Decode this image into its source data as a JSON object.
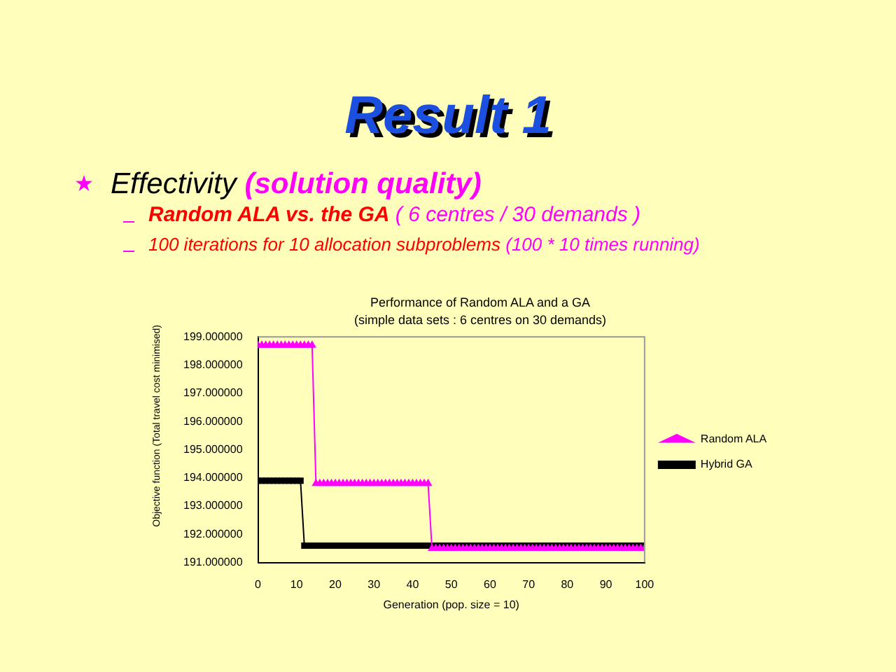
{
  "chart_data": {
    "type": "line",
    "title": "Performance of Random ALA and a GA",
    "subtitle": "(simple data sets : 6 centres on 30 demands)",
    "xlabel": "Generation (pop. size = 10)",
    "ylabel": "Objective function (Total travel cost minimised)",
    "annotations": [
      "Result 1",
      "Effectivity",
      "(solution quality)",
      "Random ALA vs. the GA",
      "( 6 centres / 30 demands )",
      "100 iterations for 10 allocation subproblems",
      "(100 * 10 times running)"
    ],
    "x": [
      0,
      1,
      2,
      3,
      4,
      5,
      6,
      7,
      8,
      9,
      10,
      11,
      12,
      13,
      14,
      15,
      16,
      17,
      18,
      19,
      20,
      21,
      22,
      23,
      24,
      25,
      26,
      27,
      28,
      29,
      30,
      31,
      32,
      33,
      34,
      35,
      36,
      37,
      38,
      39,
      40,
      41,
      42,
      43,
      44,
      45,
      46,
      47,
      48,
      49,
      50,
      51,
      52,
      53,
      54,
      55,
      56,
      57,
      58,
      59,
      60,
      61,
      62,
      63,
      64,
      65,
      66,
      67,
      68,
      69,
      70,
      71,
      72,
      73,
      74,
      75,
      76,
      77,
      78,
      79,
      80,
      81,
      82,
      83,
      84,
      85,
      86,
      87,
      88,
      89,
      90,
      91,
      92,
      93,
      94,
      95,
      96,
      97,
      98,
      99,
      100
    ],
    "series": [
      {
        "name": "Random ALA",
        "color": "#ff00ff",
        "marker": "triangle",
        "values": [
          198.7,
          198.7,
          198.7,
          198.7,
          198.7,
          198.7,
          198.7,
          198.7,
          198.7,
          198.7,
          198.7,
          198.7,
          198.7,
          198.7,
          198.7,
          193.8,
          193.8,
          193.8,
          193.8,
          193.8,
          193.8,
          193.8,
          193.8,
          193.8,
          193.8,
          193.8,
          193.8,
          193.8,
          193.8,
          193.8,
          193.8,
          193.8,
          193.8,
          193.8,
          193.8,
          193.8,
          193.8,
          193.8,
          193.8,
          193.8,
          193.8,
          193.8,
          193.8,
          193.8,
          193.8,
          191.5,
          191.5,
          191.5,
          191.5,
          191.5,
          191.5,
          191.5,
          191.5,
          191.5,
          191.5,
          191.5,
          191.5,
          191.5,
          191.5,
          191.5,
          191.5,
          191.5,
          191.5,
          191.5,
          191.5,
          191.5,
          191.5,
          191.5,
          191.5,
          191.5,
          191.5,
          191.5,
          191.5,
          191.5,
          191.5,
          191.5,
          191.5,
          191.5,
          191.5,
          191.5,
          191.5,
          191.5,
          191.5,
          191.5,
          191.5,
          191.5,
          191.5,
          191.5,
          191.5,
          191.5,
          191.5,
          191.5,
          191.5,
          191.5,
          191.5,
          191.5,
          191.5,
          191.5,
          191.5,
          191.5,
          191.5
        ]
      },
      {
        "name": "Hybrid GA",
        "color": "#000000",
        "marker": "square",
        "values": [
          193.9,
          193.9,
          193.9,
          193.9,
          193.9,
          193.9,
          193.9,
          193.9,
          193.9,
          193.9,
          193.9,
          193.9,
          191.6,
          191.6,
          191.6,
          191.6,
          191.6,
          191.6,
          191.6,
          191.6,
          191.6,
          191.6,
          191.6,
          191.6,
          191.6,
          191.6,
          191.6,
          191.6,
          191.6,
          191.6,
          191.6,
          191.6,
          191.6,
          191.6,
          191.6,
          191.6,
          191.6,
          191.6,
          191.6,
          191.6,
          191.6,
          191.6,
          191.6,
          191.6,
          191.6,
          191.6,
          191.6,
          191.6,
          191.6,
          191.6,
          191.6,
          191.6,
          191.6,
          191.6,
          191.6,
          191.6,
          191.6,
          191.6,
          191.6,
          191.6,
          191.6,
          191.6,
          191.6,
          191.6,
          191.6,
          191.6,
          191.6,
          191.6,
          191.6,
          191.6,
          191.6,
          191.6,
          191.6,
          191.6,
          191.6,
          191.6,
          191.6,
          191.6,
          191.6,
          191.6,
          191.6,
          191.6,
          191.6,
          191.6,
          191.6,
          191.6,
          191.6,
          191.6,
          191.6,
          191.6,
          191.6,
          191.6,
          191.6,
          191.6,
          191.6,
          191.6,
          191.6,
          191.6,
          191.6,
          191.6,
          191.6
        ]
      }
    ],
    "xlim": [
      0,
      100
    ],
    "xticks": [
      0,
      10,
      20,
      30,
      40,
      50,
      60,
      70,
      80,
      90,
      100
    ],
    "ylim": [
      191,
      199
    ],
    "yticks": [
      {
        "value": 191,
        "label": "191.000000"
      },
      {
        "value": 192,
        "label": "192.000000"
      },
      {
        "value": 193,
        "label": "193.000000"
      },
      {
        "value": 194,
        "label": "194.000000"
      },
      {
        "value": 195,
        "label": "195.000000"
      },
      {
        "value": 196,
        "label": "196.000000"
      },
      {
        "value": 197,
        "label": "197.000000"
      },
      {
        "value": 198,
        "label": "198.000000"
      },
      {
        "value": 199,
        "label": "199.000000"
      }
    ],
    "legend": "right",
    "line_style": "solid"
  }
}
